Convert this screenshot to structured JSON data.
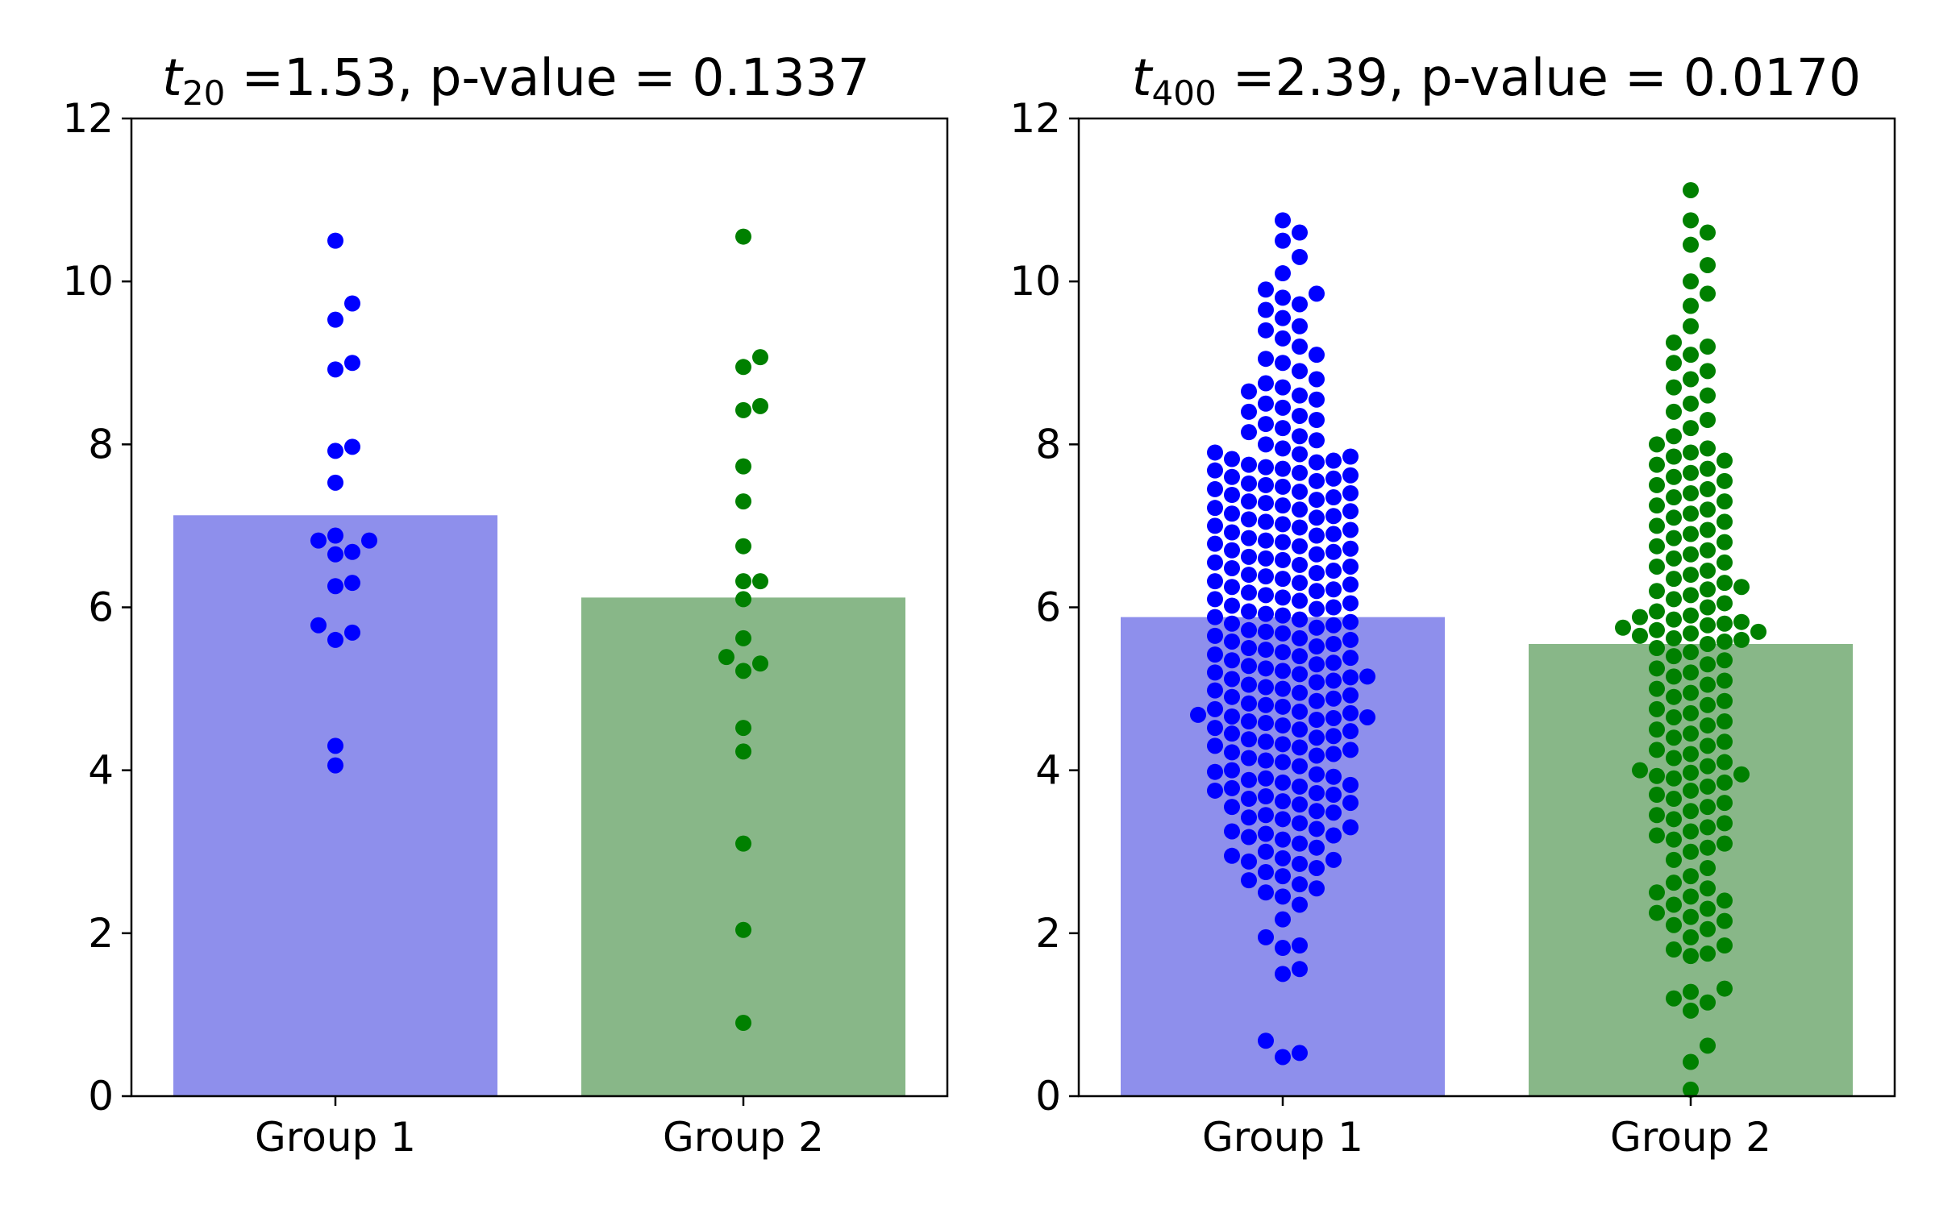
{
  "chart_data": [
    {
      "type": "bar",
      "title": {
        "var": "t",
        "sub": "20",
        "text": " =1.53, p-value = 0.1337"
      },
      "categories": [
        "Group 1",
        "Group 2"
      ],
      "values": [
        7.13,
        6.12
      ],
      "bar_colors": [
        "#8e8fec",
        "#88b788"
      ],
      "ylim": [
        0,
        12
      ],
      "yticks": [
        "0",
        "2",
        "4",
        "6",
        "8",
        "10",
        "12"
      ],
      "grid": false,
      "points": [
        {
          "group": "Group 1",
          "color": "#0000ff",
          "y": [
            10.5,
            9.73,
            9.53,
            9.0,
            8.92,
            7.97,
            7.92,
            7.53,
            6.88,
            6.82,
            6.82,
            6.68,
            6.65,
            6.3,
            6.26,
            5.78,
            5.69,
            5.6,
            4.3,
            4.06
          ]
        },
        {
          "group": "Group 2",
          "color": "#008000",
          "y": [
            10.55,
            9.07,
            8.95,
            8.47,
            8.42,
            7.73,
            7.3,
            6.75,
            6.32,
            6.32,
            6.1,
            5.62,
            5.39,
            5.31,
            5.22,
            4.52,
            4.23,
            3.1,
            2.04,
            0.9
          ]
        }
      ]
    },
    {
      "type": "bar",
      "title": {
        "var": "t",
        "sub": "400",
        "text": " =2.39, p-value = 0.0170"
      },
      "categories": [
        "Group 1",
        "Group 2"
      ],
      "values": [
        5.88,
        5.55
      ],
      "bar_colors": [
        "#8e8fec",
        "#88b788"
      ],
      "ylim": [
        0,
        12
      ],
      "yticks": [
        "0",
        "2",
        "4",
        "6",
        "8",
        "10",
        "12"
      ],
      "grid": false,
      "points": [
        {
          "group": "Group 1",
          "color": "#0000ff",
          "y": [
            0.48,
            0.53,
            0.68,
            1.5,
            1.56,
            1.82,
            1.85,
            1.95,
            2.17,
            2.35,
            2.45,
            2.5,
            2.55,
            2.6,
            2.65,
            2.7,
            2.75,
            2.8,
            2.85,
            2.88,
            2.9,
            2.92,
            2.95,
            3.0,
            3.05,
            3.1,
            3.15,
            3.18,
            3.2,
            3.22,
            3.25,
            3.28,
            3.3,
            3.35,
            3.4,
            3.42,
            3.45,
            3.48,
            3.5,
            3.55,
            3.58,
            3.6,
            3.62,
            3.65,
            3.68,
            3.7,
            3.72,
            3.75,
            3.78,
            3.8,
            3.82,
            3.85,
            3.88,
            3.9,
            3.92,
            3.95,
            3.98,
            4.0,
            4.05,
            4.1,
            4.12,
            4.15,
            4.18,
            4.2,
            4.22,
            4.25,
            4.28,
            4.3,
            4.32,
            4.35,
            4.38,
            4.4,
            4.42,
            4.45,
            4.48,
            4.5,
            4.52,
            4.55,
            4.58,
            4.6,
            4.62,
            4.64,
            4.65,
            4.66,
            4.68,
            4.7,
            4.72,
            4.75,
            4.78,
            4.8,
            4.82,
            4.85,
            4.88,
            4.9,
            4.92,
            4.95,
            4.98,
            5.0,
            5.02,
            5.05,
            5.08,
            5.1,
            5.12,
            5.14,
            5.15,
            5.18,
            5.2,
            5.22,
            5.25,
            5.28,
            5.3,
            5.32,
            5.35,
            5.38,
            5.4,
            5.42,
            5.45,
            5.48,
            5.5,
            5.52,
            5.55,
            5.58,
            5.6,
            5.62,
            5.65,
            5.68,
            5.7,
            5.72,
            5.75,
            5.78,
            5.8,
            5.82,
            5.85,
            5.88,
            5.9,
            5.92,
            5.95,
            5.98,
            6.0,
            6.02,
            6.05,
            6.08,
            6.1,
            6.12,
            6.15,
            6.18,
            6.2,
            6.22,
            6.25,
            6.28,
            6.3,
            6.32,
            6.35,
            6.38,
            6.4,
            6.42,
            6.45,
            6.48,
            6.5,
            6.52,
            6.55,
            6.58,
            6.6,
            6.62,
            6.65,
            6.68,
            6.7,
            6.72,
            6.75,
            6.78,
            6.8,
            6.82,
            6.85,
            6.88,
            6.9,
            6.92,
            6.95,
            6.98,
            7.0,
            7.02,
            7.05,
            7.08,
            7.1,
            7.12,
            7.15,
            7.18,
            7.2,
            7.22,
            7.25,
            7.28,
            7.3,
            7.32,
            7.35,
            7.38,
            7.4,
            7.42,
            7.45,
            7.48,
            7.5,
            7.52,
            7.55,
            7.58,
            7.6,
            7.62,
            7.65,
            7.68,
            7.7,
            7.72,
            7.75,
            7.78,
            7.8,
            7.82,
            7.85,
            7.88,
            7.9,
            7.95,
            8.0,
            8.05,
            8.1,
            8.15,
            8.2,
            8.25,
            8.3,
            8.35,
            8.4,
            8.45,
            8.5,
            8.55,
            8.6,
            8.65,
            8.7,
            8.75,
            8.8,
            8.9,
            9.0,
            9.05,
            9.1,
            9.2,
            9.3,
            9.4,
            9.45,
            9.55,
            9.65,
            9.72,
            9.8,
            9.85,
            9.9,
            10.1,
            10.3,
            10.5,
            10.6,
            10.75
          ]
        },
        {
          "group": "Group 2",
          "color": "#008000",
          "y": [
            0.08,
            0.42,
            0.62,
            1.05,
            1.15,
            1.2,
            1.28,
            1.32,
            1.72,
            1.75,
            1.8,
            1.85,
            1.95,
            2.05,
            2.1,
            2.15,
            2.2,
            2.25,
            2.3,
            2.35,
            2.4,
            2.45,
            2.5,
            2.55,
            2.62,
            2.7,
            2.8,
            2.9,
            3.0,
            3.05,
            3.1,
            3.15,
            3.2,
            3.25,
            3.3,
            3.35,
            3.4,
            3.45,
            3.5,
            3.55,
            3.6,
            3.65,
            3.7,
            3.75,
            3.8,
            3.85,
            3.9,
            3.93,
            3.95,
            3.97,
            4.0,
            4.05,
            4.1,
            4.15,
            4.2,
            4.25,
            4.3,
            4.35,
            4.4,
            4.45,
            4.5,
            4.55,
            4.6,
            4.65,
            4.7,
            4.75,
            4.8,
            4.85,
            4.9,
            4.95,
            5.0,
            5.05,
            5.1,
            5.15,
            5.2,
            5.25,
            5.3,
            5.35,
            5.4,
            5.45,
            5.5,
            5.55,
            5.58,
            5.6,
            5.62,
            5.65,
            5.68,
            5.7,
            5.72,
            5.75,
            5.78,
            5.8,
            5.82,
            5.85,
            5.88,
            5.9,
            5.95,
            6.0,
            6.05,
            6.1,
            6.15,
            6.2,
            6.22,
            6.25,
            6.3,
            6.35,
            6.4,
            6.45,
            6.5,
            6.55,
            6.6,
            6.65,
            6.7,
            6.75,
            6.8,
            6.85,
            6.9,
            6.95,
            7.0,
            7.05,
            7.1,
            7.15,
            7.2,
            7.25,
            7.3,
            7.35,
            7.4,
            7.45,
            7.5,
            7.55,
            7.6,
            7.65,
            7.7,
            7.75,
            7.8,
            7.85,
            7.9,
            7.95,
            8.0,
            8.1,
            8.2,
            8.3,
            8.4,
            8.5,
            8.6,
            8.7,
            8.8,
            8.9,
            9.0,
            9.1,
            9.2,
            9.25,
            9.45,
            9.7,
            9.85,
            10.0,
            10.2,
            10.45,
            10.6,
            10.75,
            11.12
          ]
        }
      ]
    }
  ]
}
